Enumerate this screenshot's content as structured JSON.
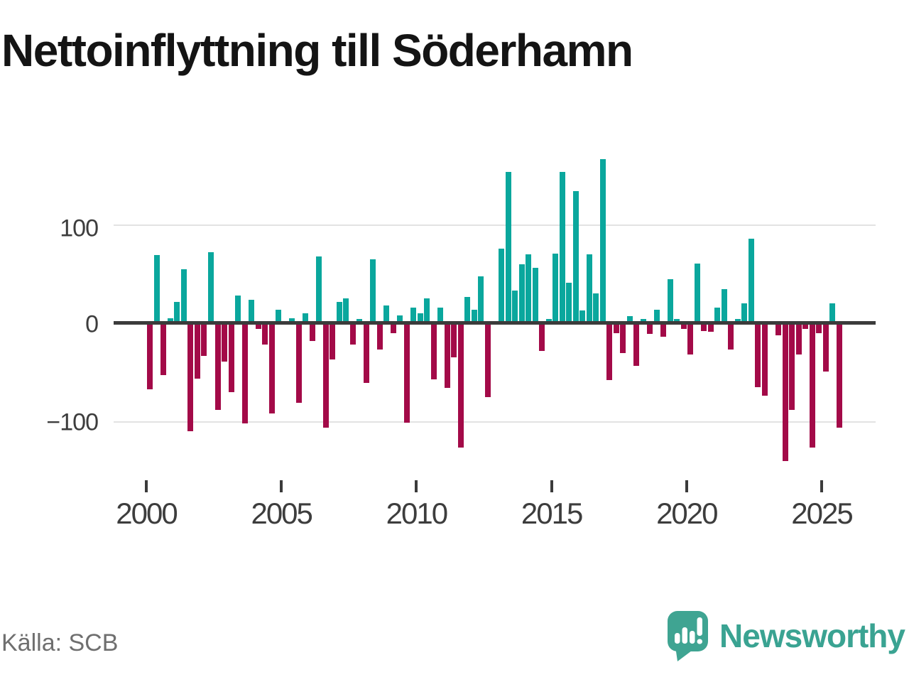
{
  "title": "Nettoinflyttning till Söderhamn",
  "source": "Källa: SCB",
  "brand": {
    "name": "Newsworthy"
  },
  "colors": {
    "positive": "#0aa79d",
    "negative": "#a30a48",
    "zero_line": "#3b3b3b",
    "gridline": "#e3e3e3",
    "axis_text": "#3d3d3d",
    "title_text": "#141414",
    "source_text": "#6f6f6f",
    "brand_teal": "#3aa392"
  },
  "chart_data": {
    "type": "bar",
    "title": "Nettoinflyttning till Söderhamn",
    "description": "Quarterly net migration to Söderhamn, positive values teal, negative values dark red",
    "x_start": "2000Q1",
    "x_end": "2025Q3",
    "x_tick_labels": [
      "2000",
      "2005",
      "2010",
      "2015",
      "2020",
      "2025"
    ],
    "y_ticks": [
      100,
      0,
      -100
    ],
    "y_tick_labels": [
      "100",
      "0",
      "−100"
    ],
    "ylim": [
      -150,
      180
    ],
    "grid": "horizontal gridlines at +100 and -100, dark zero axis line",
    "legend": "none",
    "quarters": [
      "2000Q1",
      "2000Q2",
      "2000Q3",
      "2000Q4",
      "2001Q1",
      "2001Q2",
      "2001Q3",
      "2001Q4",
      "2002Q1",
      "2002Q2",
      "2002Q3",
      "2002Q4",
      "2003Q1",
      "2003Q2",
      "2003Q3",
      "2003Q4",
      "2004Q1",
      "2004Q2",
      "2004Q3",
      "2004Q4",
      "2005Q1",
      "2005Q2",
      "2005Q3",
      "2005Q4",
      "2006Q1",
      "2006Q2",
      "2006Q3",
      "2006Q4",
      "2007Q1",
      "2007Q2",
      "2007Q3",
      "2007Q4",
      "2008Q1",
      "2008Q2",
      "2008Q3",
      "2008Q4",
      "2009Q1",
      "2009Q2",
      "2009Q3",
      "2009Q4",
      "2010Q1",
      "2010Q2",
      "2010Q3",
      "2010Q4",
      "2011Q1",
      "2011Q2",
      "2011Q3",
      "2011Q4",
      "2012Q1",
      "2012Q2",
      "2012Q3",
      "2012Q4",
      "2013Q1",
      "2013Q2",
      "2013Q3",
      "2013Q4",
      "2014Q1",
      "2014Q2",
      "2014Q3",
      "2014Q4",
      "2015Q1",
      "2015Q2",
      "2015Q3",
      "2015Q4",
      "2016Q1",
      "2016Q2",
      "2016Q3",
      "2016Q4",
      "2017Q1",
      "2017Q2",
      "2017Q3",
      "2017Q4",
      "2018Q1",
      "2018Q2",
      "2018Q3",
      "2018Q4",
      "2019Q1",
      "2019Q2",
      "2019Q3",
      "2019Q4",
      "2020Q1",
      "2020Q2",
      "2020Q3",
      "2020Q4",
      "2021Q1",
      "2021Q2",
      "2021Q3",
      "2021Q4",
      "2022Q1",
      "2022Q2",
      "2022Q3",
      "2022Q4",
      "2023Q1",
      "2023Q2",
      "2023Q3",
      "2023Q4",
      "2024Q1",
      "2024Q2",
      "2024Q3",
      "2024Q4",
      "2025Q1",
      "2025Q2",
      "2025Q3"
    ],
    "values": [
      -67,
      69,
      -53,
      5,
      22,
      55,
      -110,
      -56,
      -33,
      72,
      -88,
      -39,
      -70,
      28,
      -102,
      24,
      -6,
      -22,
      -92,
      14,
      0,
      5,
      -81,
      10,
      -18,
      68,
      -106,
      -37,
      22,
      25,
      -22,
      4,
      -61,
      65,
      -27,
      18,
      -10,
      8,
      -101,
      16,
      10,
      25,
      -57,
      16,
      -66,
      -35,
      -126,
      27,
      14,
      48,
      -75,
      0,
      76,
      154,
      33,
      60,
      70,
      56,
      -28,
      4,
      71,
      154,
      41,
      134,
      13,
      70,
      30,
      167,
      -58,
      -10,
      -30,
      7,
      -43,
      4,
      -11,
      14,
      -14,
      45,
      4,
      -6,
      -32,
      61,
      -8,
      -9,
      16,
      35,
      -27,
      4,
      20,
      86,
      -65,
      -74,
      0,
      -12,
      -140,
      -88,
      -32,
      -6,
      -126,
      -10,
      -49,
      20,
      -106
    ]
  }
}
